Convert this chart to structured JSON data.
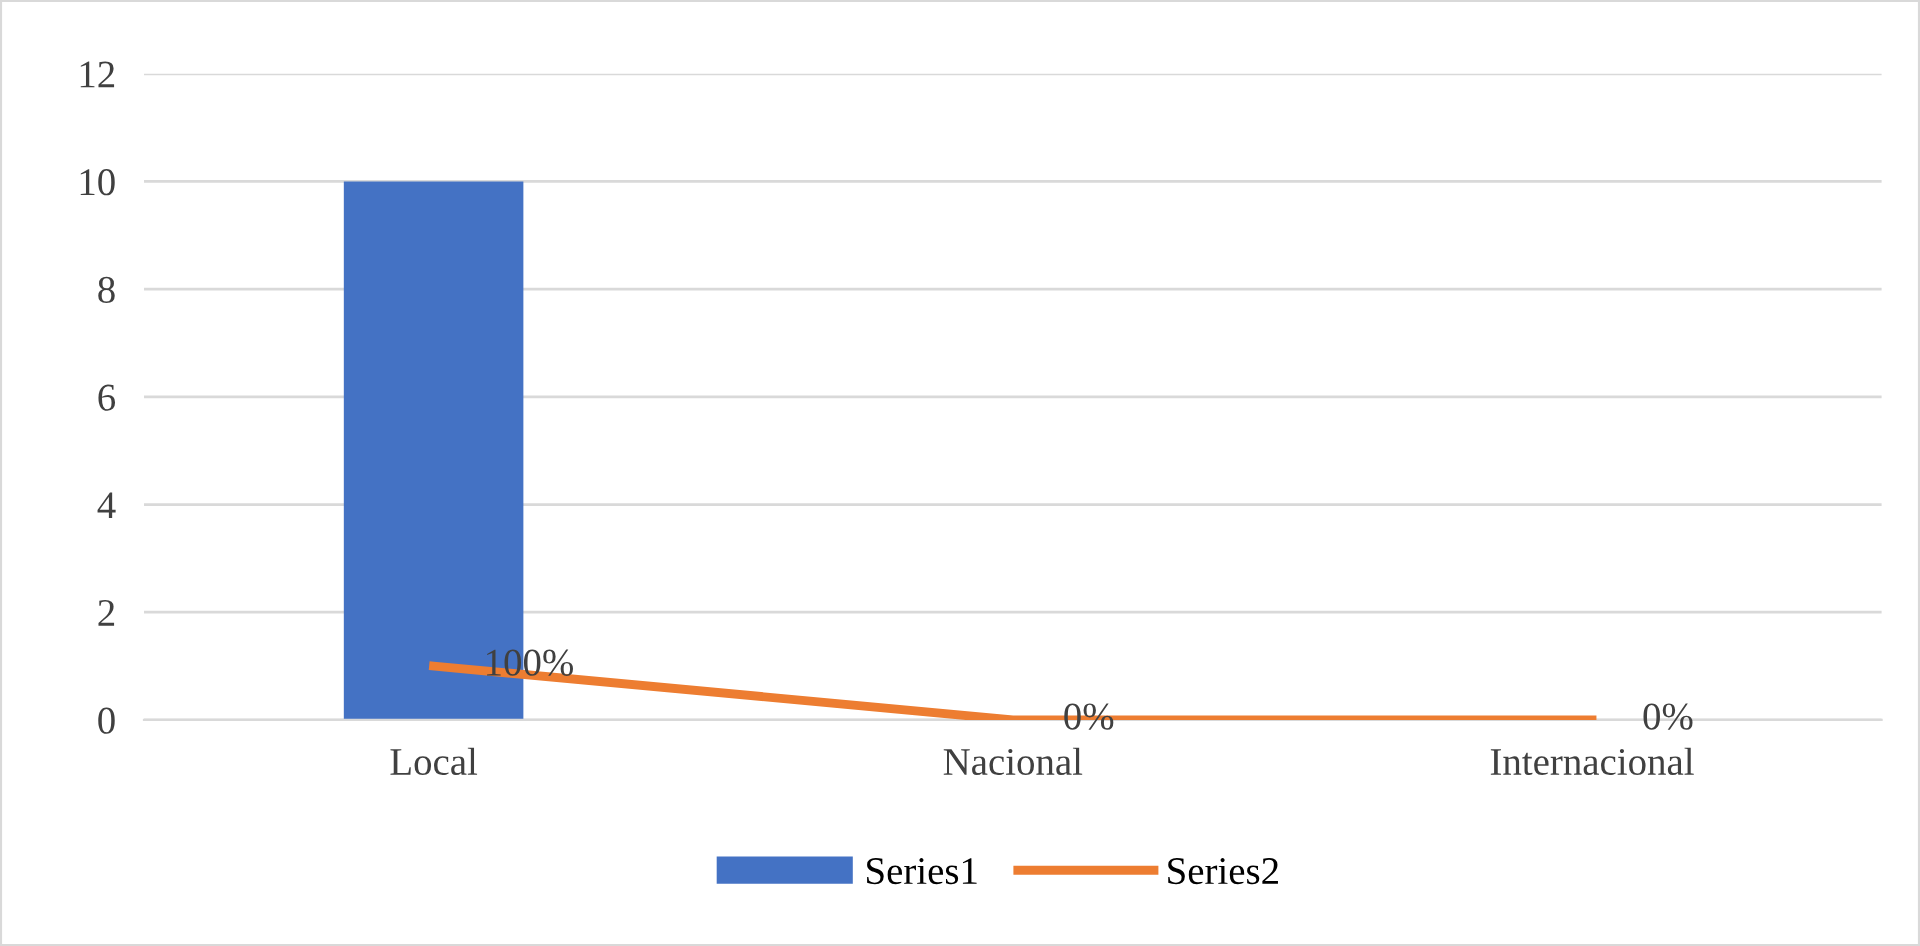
{
  "chart_data": {
    "type": "bar",
    "categories": [
      "Local",
      "Nacional",
      "Internacional"
    ],
    "series": [
      {
        "name": "Series1",
        "color": "#4472c4",
        "values": [
          10,
          0,
          0
        ]
      },
      {
        "name": "Series2",
        "type": "line",
        "color": "#ed7d31",
        "values": [
          1,
          0,
          0
        ],
        "value_labels": [
          "100%",
          "0%",
          "0%"
        ]
      }
    ],
    "ylim": [
      0,
      12
    ],
    "yticks": [
      0,
      2,
      4,
      6,
      8,
      10,
      12
    ],
    "grid": "y",
    "legend": "bottom",
    "marker": "none",
    "line_style": "solid"
  }
}
